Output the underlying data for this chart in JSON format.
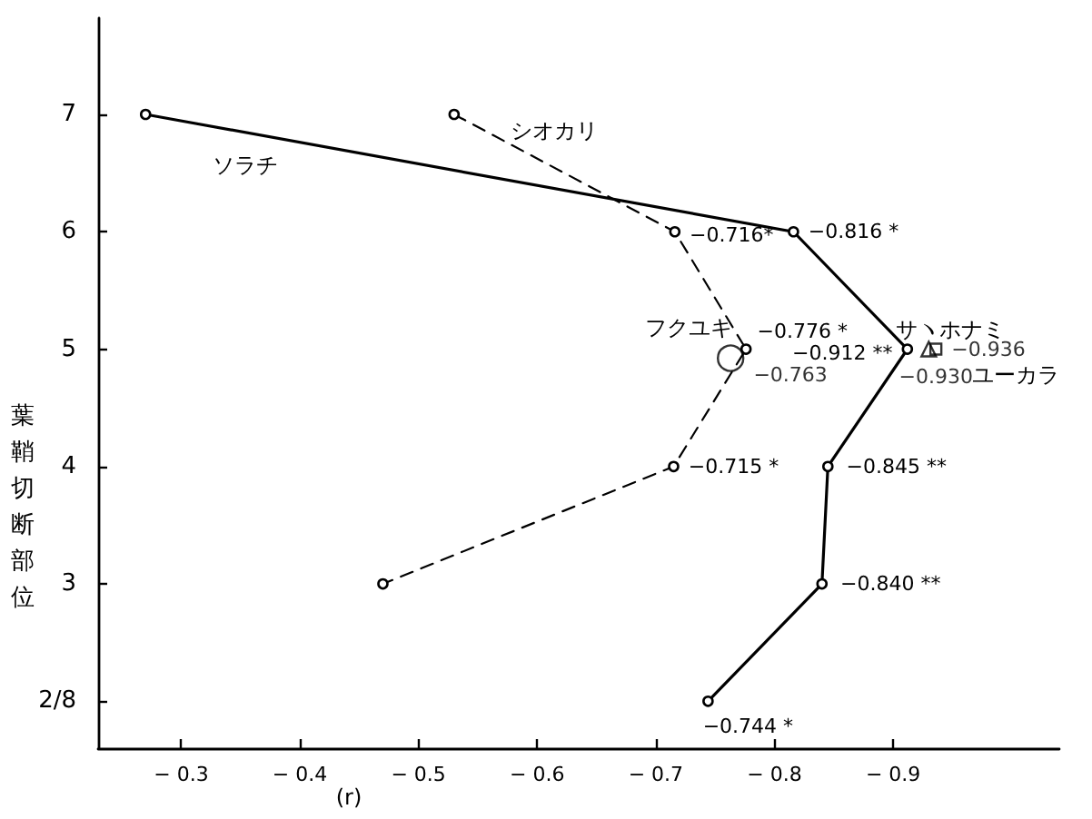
{
  "chart_data": {
    "type": "line",
    "orientation": "horizontal",
    "xlabel": "(r)",
    "ylabel": "葉鞘切断部位",
    "categories": [
      "7",
      "6",
      "5",
      "4",
      "3",
      "2/8"
    ],
    "xlim": [
      -0.23,
      -1.04
    ],
    "xticks": [
      -0.3,
      -0.4,
      -0.5,
      -0.6,
      -0.7,
      -0.8,
      -0.9
    ],
    "grid": false,
    "legend": false,
    "series": [
      {
        "name": "ソラチ",
        "color": "#000000",
        "line_style": "solid",
        "marker": "circle",
        "values": [
          -0.27,
          -0.816,
          -0.912,
          -0.845,
          -0.84,
          -0.744
        ],
        "value_labels": [
          null,
          "−0.816 *",
          "−0.912 **",
          "−0.845 **",
          "−0.840 **",
          "−0.744 *"
        ]
      },
      {
        "name": "シオカリ",
        "color": "#000000",
        "line_style": "dashed",
        "marker": "circle",
        "values": [
          -0.53,
          -0.716,
          -0.776,
          -0.715,
          -0.47,
          null
        ],
        "value_labels": [
          null,
          "−0.716*",
          "−0.776 *",
          "−0.715 *",
          null,
          null
        ]
      },
      {
        "name": "フクユキ",
        "type": "scatter",
        "color": "#000000",
        "marker": "circle",
        "values": [
          null,
          null,
          -0.763,
          null,
          null,
          null
        ],
        "value_labels": [
          null,
          null,
          "−0.763",
          null,
          null,
          null
        ]
      },
      {
        "name": "サヽホナミ",
        "type": "scatter",
        "color": "#000000",
        "marker": "triangle",
        "values": [
          null,
          null,
          -0.93,
          null,
          null,
          null
        ],
        "value_labels": [
          null,
          null,
          "−0.930",
          null,
          null,
          null
        ]
      },
      {
        "name": "ユーカラ",
        "type": "scatter",
        "color": "#000000",
        "marker": "square",
        "values": [
          null,
          null,
          -0.936,
          null,
          null,
          null
        ],
        "value_labels": [
          null,
          null,
          "−0.936",
          null,
          null,
          null
        ]
      }
    ]
  }
}
